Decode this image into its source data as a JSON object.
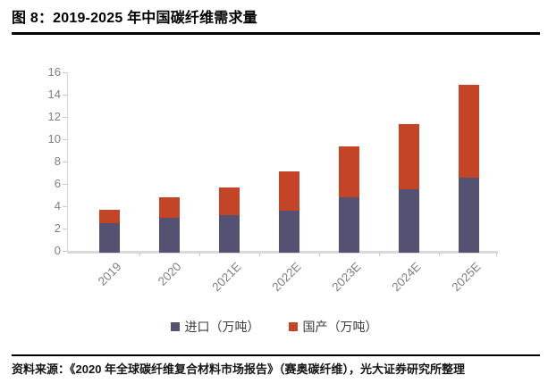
{
  "figure": {
    "title": "图 8：2019-2025 年中国碳纤维需求量",
    "source": "资料来源：《2020 年全球碳纤维复合材料市场报告》（赛奥碳纤维），光大证券研究所整理"
  },
  "chart_data": {
    "type": "bar",
    "stacked": true,
    "title": "",
    "xlabel": "",
    "ylabel": "",
    "categories": [
      "2019",
      "2020",
      "2021E",
      "2022E",
      "2023E",
      "2024E",
      "2025E"
    ],
    "series": [
      {
        "name": "进口（万吨）",
        "color": "#555172",
        "values": [
          2.5,
          3.0,
          3.2,
          3.6,
          4.8,
          5.5,
          6.6
        ]
      },
      {
        "name": "国产（万吨）",
        "color": "#c44427",
        "values": [
          1.2,
          1.8,
          2.5,
          3.5,
          4.6,
          5.9,
          8.3
        ]
      }
    ],
    "totals": [
      3.7,
      4.8,
      5.7,
      7.1,
      9.4,
      11.4,
      14.9
    ],
    "ylim": [
      0,
      16
    ],
    "ytick_step": 2,
    "grid": false,
    "legend_position": "bottom",
    "axis_color": "#d6d6d6",
    "tick_label_color": "#7f7f7f"
  }
}
